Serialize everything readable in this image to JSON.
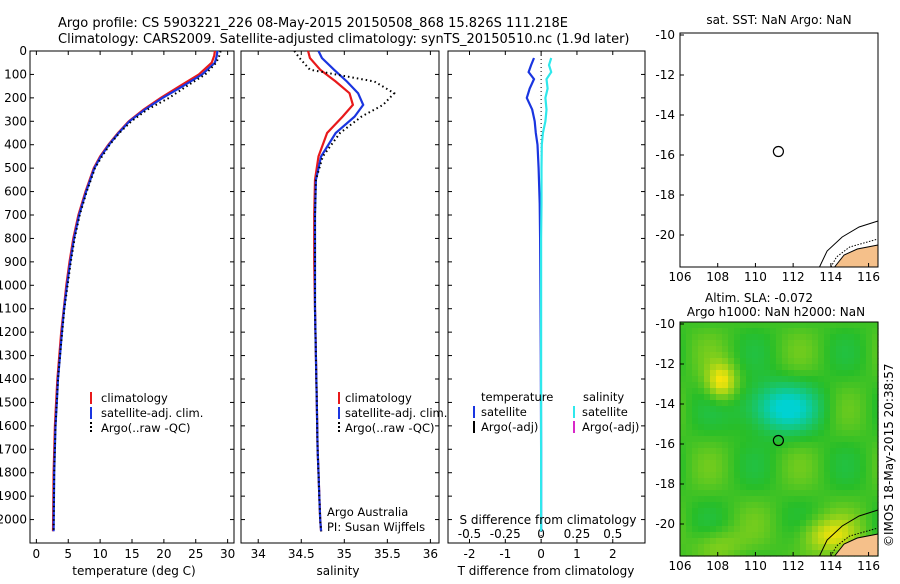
{
  "header": {
    "line1": "Argo profile: CS 5903221_226 08-May-2015 20150508_868 15.826S 111.218E",
    "line2": "Climatology: CARS2009. Satellite-adjusted climatology: synTS_20150510.nc (1.9d later)"
  },
  "side_stamp": "©IMOS 18-May-2015 20:38:57",
  "colors": {
    "climatology": "#e8191b",
    "satellite": "#1a35e0",
    "argo": "#000000",
    "sat_salinity": "#2fe8ec",
    "argo_adj_salinity": "#d828c8",
    "land": "#f5c08a"
  },
  "chart_data": [
    {
      "type": "line",
      "id": "temperature",
      "xlabel": "temperature (deg C)",
      "xlim": [
        -1,
        31
      ],
      "ylim": [
        2100,
        0
      ],
      "xticks": [
        0,
        5,
        10,
        15,
        20,
        25,
        30
      ],
      "yticks": [
        0,
        100,
        200,
        300,
        400,
        500,
        600,
        700,
        800,
        900,
        1000,
        1100,
        1200,
        1300,
        1400,
        1500,
        1600,
        1700,
        1800,
        1900,
        2000
      ],
      "legend": [
        "climatology",
        "satellite-adj. clim.",
        "Argo(..raw -QC)"
      ],
      "series": [
        {
          "name": "climatology",
          "style": "solid",
          "x": [
            28.0,
            27.9,
            27.5,
            25.5,
            22.5,
            19.5,
            16.8,
            14.5,
            12.8,
            11.3,
            10.0,
            9.0,
            7.7,
            6.6,
            5.8,
            5.2,
            4.7,
            4.3,
            3.9,
            3.6,
            3.3,
            3.1,
            2.9,
            2.7,
            2.6
          ],
          "y": [
            0,
            20,
            50,
            100,
            150,
            200,
            250,
            300,
            350,
            400,
            450,
            500,
            600,
            700,
            800,
            900,
            1000,
            1100,
            1200,
            1300,
            1400,
            1500,
            1600,
            1800,
            2050
          ]
        },
        {
          "name": "satellite-adj. clim.",
          "style": "solid",
          "x": [
            28.4,
            28.3,
            28.0,
            26.0,
            23.0,
            19.8,
            17.0,
            14.6,
            12.9,
            11.4,
            10.1,
            9.1,
            7.8,
            6.7,
            5.9,
            5.3,
            4.8,
            4.35,
            4.0,
            3.7,
            3.4,
            3.2,
            3.0,
            2.8,
            2.7
          ],
          "y": [
            0,
            20,
            50,
            100,
            150,
            200,
            250,
            300,
            350,
            400,
            450,
            500,
            600,
            700,
            800,
            900,
            1000,
            1100,
            1200,
            1300,
            1400,
            1500,
            1600,
            1800,
            2050
          ]
        },
        {
          "name": "Argo(..raw -QC)",
          "style": "dotted",
          "x": [
            28.9,
            28.7,
            28.2,
            26.5,
            23.6,
            20.8,
            17.4,
            14.9,
            13.0,
            11.5,
            10.3,
            9.2,
            7.9,
            6.8,
            6.0,
            5.4,
            4.9,
            4.4,
            4.05,
            3.7,
            3.4,
            3.2,
            3.0,
            2.8,
            2.7
          ],
          "y": [
            0,
            20,
            50,
            100,
            150,
            200,
            250,
            300,
            350,
            400,
            450,
            500,
            600,
            700,
            800,
            900,
            1000,
            1100,
            1200,
            1300,
            1400,
            1500,
            1600,
            1800,
            2050
          ]
        }
      ]
    },
    {
      "type": "line",
      "id": "salinity",
      "xlabel": "salinity",
      "xlim": [
        33.8,
        36.1
      ],
      "ylim": [
        2100,
        0
      ],
      "xticks": [
        34,
        34.5,
        35,
        35.5,
        36
      ],
      "legend": [
        "climatology",
        "satellite-adj. clim.",
        "Argo(..raw -QC)"
      ],
      "note": [
        "Argo Australia",
        "PI: Susan Wijffels"
      ],
      "series": [
        {
          "name": "climatology",
          "style": "solid",
          "x": [
            34.58,
            34.6,
            34.72,
            34.9,
            35.06,
            35.1,
            34.98,
            34.8,
            34.7,
            34.66,
            34.65,
            34.65,
            34.66,
            34.67,
            34.68,
            34.69,
            34.7,
            34.71,
            34.72,
            34.73
          ],
          "y": [
            0,
            30,
            80,
            130,
            180,
            230,
            280,
            350,
            450,
            550,
            700,
            900,
            1100,
            1300,
            1500,
            1700,
            1800,
            1900,
            2000,
            2050
          ]
        },
        {
          "name": "satellite-adj. clim.",
          "style": "solid",
          "x": [
            34.7,
            34.74,
            34.88,
            35.03,
            35.16,
            35.22,
            35.12,
            34.9,
            34.73,
            34.67,
            34.66,
            34.66,
            34.66,
            34.67,
            34.68,
            34.69,
            34.7,
            34.71,
            34.72,
            34.73
          ],
          "y": [
            0,
            30,
            80,
            130,
            180,
            230,
            280,
            350,
            450,
            550,
            700,
            900,
            1100,
            1300,
            1500,
            1700,
            1800,
            1900,
            2000,
            2050
          ]
        },
        {
          "name": "Argo(..raw -QC)",
          "style": "dotted",
          "x": [
            34.42,
            34.48,
            34.6,
            35.35,
            35.58,
            35.45,
            35.2,
            34.95,
            34.75,
            34.67,
            34.66,
            34.66,
            34.66,
            34.67,
            34.68,
            34.69,
            34.7,
            34.71,
            34.72,
            34.73
          ],
          "y": [
            0,
            30,
            80,
            130,
            180,
            230,
            280,
            350,
            450,
            550,
            700,
            900,
            1100,
            1300,
            1500,
            1700,
            1800,
            1900,
            2000,
            2050
          ]
        }
      ]
    },
    {
      "type": "line",
      "id": "difference",
      "xlabel": "T difference from climatology",
      "xlabel_top": "S difference from climatology",
      "xlim": [
        -2.6,
        2.9
      ],
      "ylim": [
        2100,
        0
      ],
      "xticks": [
        -2,
        -1,
        0,
        1,
        2
      ],
      "xticks_s": [
        "-0.5",
        "-0.25",
        "0",
        "0.25",
        "0.5"
      ],
      "legend": {
        "temperature_title": "temperature",
        "salinity_title": "salinity",
        "temperature": [
          "satellite",
          "Argo(-adj)"
        ],
        "salinity": [
          "satellite",
          "Argo(-adj)"
        ]
      },
      "series": [
        {
          "name": "temperature satellite",
          "x": [
            -0.2,
            -0.28,
            -0.35,
            -0.2,
            -0.32,
            -0.4,
            -0.25,
            -0.18,
            -0.15,
            -0.1,
            -0.07,
            -0.04,
            -0.03,
            -0.02,
            -0.01,
            0.0,
            0.0
          ],
          "y": [
            30,
            60,
            90,
            120,
            160,
            200,
            250,
            300,
            350,
            400,
            500,
            650,
            800,
            1000,
            1300,
            1700,
            2050
          ]
        },
        {
          "name": "salinity satellite",
          "x": [
            0.28,
            0.22,
            0.28,
            0.15,
            0.18,
            0.12,
            0.15,
            0.12,
            0.05,
            0.02,
            0.01,
            0.01,
            0.0,
            0.0,
            0.0,
            0.0,
            0.0
          ],
          "y": [
            30,
            60,
            90,
            120,
            160,
            200,
            250,
            300,
            350,
            400,
            500,
            650,
            800,
            1000,
            1300,
            1700,
            2050
          ]
        }
      ]
    },
    {
      "type": "scatter",
      "id": "sst-map",
      "title": "sat. SST: NaN Argo: NaN",
      "xlim": [
        106,
        116.5
      ],
      "ylim": [
        -21.6,
        -9.9
      ],
      "xticks": [
        106,
        108,
        110,
        112,
        114,
        116
      ],
      "yticks": [
        -10,
        -12,
        -14,
        -16,
        -18,
        -20
      ],
      "profile_location": {
        "lon": 111.218,
        "lat": -15.826
      }
    },
    {
      "type": "heatmap",
      "id": "sla-map",
      "title_line1": "Altim. SLA: -0.072",
      "title_line2": "Argo h1000: NaN h2000: NaN",
      "xlim": [
        106,
        116.5
      ],
      "ylim": [
        -21.6,
        -9.9
      ],
      "xticks": [
        106,
        108,
        110,
        112,
        114,
        116
      ],
      "yticks": [
        -10,
        -12,
        -14,
        -16,
        -18,
        -20
      ],
      "profile_location": {
        "lon": 111.218,
        "lat": -15.826
      }
    }
  ]
}
